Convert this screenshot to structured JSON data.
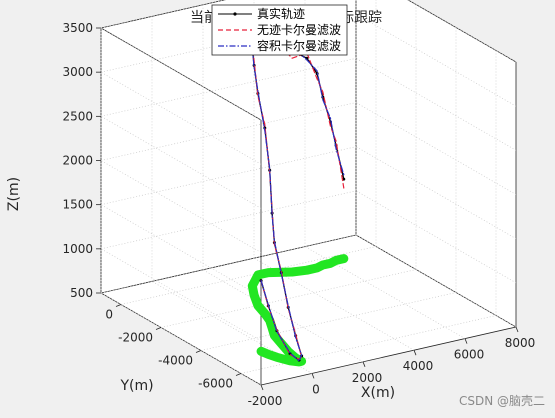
{
  "window": {
    "watermark": "CSDN @脑壳二"
  },
  "chart_data": {
    "type": "line3d",
    "title": "当前（被遮挡）……标跟踪",
    "title_left": "当前",
    "title_right": "标跟踪",
    "xlabel": "X(m)",
    "ylabel": "Y(m)",
    "zlabel": "Z(m)",
    "xlim": [
      -2000,
      8000
    ],
    "ylim": [
      -7000,
      1000
    ],
    "zlim": [
      500,
      3500
    ],
    "x_ticks": [
      "-2000",
      "0",
      "2000",
      "4000",
      "6000",
      "8000"
    ],
    "y_ticks": [
      "0",
      "-2000",
      "-4000",
      "-6000"
    ],
    "z_ticks": [
      "500",
      "1000",
      "1500",
      "2000",
      "2500",
      "3000",
      "3500"
    ],
    "grid": true,
    "legend_position": "top-center",
    "series": [
      {
        "name": "真实轨迹",
        "color": "#000000",
        "style": "solid-dot",
        "x": [
          -350,
          -300,
          -200,
          0,
          200,
          300,
          300,
          400,
          600,
          800,
          1100,
          1400,
          1600,
          1800,
          2200,
          2600,
          3300,
          3700,
          4400,
          4900,
          5300,
          5600,
          5900,
          6200,
          6500
        ],
        "y": [
          -4900,
          -5200,
          -5500,
          -5900,
          -6100,
          -6100,
          -5800,
          -5300,
          -4700,
          -4100,
          -3600,
          -3100,
          -2600,
          -2000,
          -1300,
          -700,
          -100,
          -100,
          -400,
          -500,
          -500,
          -400,
          -400,
          -300,
          -300
        ],
        "z": [
          1300,
          1050,
          800,
          580,
          520,
          560,
          750,
          1000,
          1300,
          1550,
          1800,
          2200,
          2600,
          2900,
          3100,
          3200,
          3200,
          3100,
          3000,
          2900,
          2700,
          2400,
          2100,
          1800,
          1400
        ]
      },
      {
        "name": "无迹卡尔曼滤波",
        "color": "#e8203a",
        "style": "dashed",
        "x": [
          -350,
          -300,
          -200,
          0,
          200,
          300,
          300,
          400,
          600,
          800,
          1100,
          1400,
          1600,
          1800,
          2200,
          2600,
          3300,
          3700,
          4400,
          4900,
          5300,
          5600,
          5900,
          6200,
          6500
        ],
        "y": [
          -4900,
          -5200,
          -5500,
          -5900,
          -6100,
          -6100,
          -5800,
          -5300,
          -4700,
          -4100,
          -3600,
          -3100,
          -2600,
          -2000,
          -1300,
          -700,
          -100,
          -100,
          -400,
          -500,
          -500,
          -400,
          -400,
          -300,
          -300
        ],
        "z": [
          1300,
          1040,
          810,
          570,
          530,
          550,
          770,
          990,
          1320,
          1530,
          1830,
          2180,
          2640,
          2870,
          3150,
          3230,
          3120,
          3200,
          2920,
          2960,
          2640,
          2460,
          2050,
          1850,
          1300
        ]
      },
      {
        "name": "容积卡尔曼滤波",
        "color": "#2b2fc2",
        "style": "dashdot",
        "x": [
          -350,
          -300,
          -200,
          0,
          200,
          300,
          300,
          400,
          600,
          800,
          1100,
          1400,
          1600,
          1800,
          2200,
          2600,
          3300,
          3700,
          4400,
          4900,
          5300,
          5600,
          5900,
          6200,
          6500
        ],
        "y": [
          -4900,
          -5200,
          -5500,
          -5900,
          -6100,
          -6100,
          -5800,
          -5300,
          -4700,
          -4100,
          -3600,
          -3100,
          -2600,
          -2000,
          -1300,
          -700,
          -100,
          -100,
          -400,
          -500,
          -500,
          -400,
          -400,
          -300,
          -300
        ],
        "z": [
          1300,
          1060,
          790,
          590,
          510,
          570,
          730,
          1020,
          1290,
          1570,
          1780,
          2220,
          2570,
          2930,
          3080,
          3180,
          3240,
          3070,
          3050,
          2880,
          2730,
          2370,
          2140,
          1760,
          1450
        ]
      },
      {
        "name": "",
        "color": "#22e622",
        "style": "projection",
        "x": [
          -350,
          -300,
          -200,
          0,
          200,
          300,
          300,
          400,
          600,
          800,
          1100,
          1400,
          1600,
          1800,
          2200,
          2600,
          3300,
          3700,
          4400,
          4900,
          5300,
          5600,
          5900,
          6200,
          6500
        ],
        "y": [
          -4900,
          -5200,
          -5500,
          -5900,
          -6100,
          -6100,
          -5800,
          -5300,
          -4700,
          -4100,
          -3600,
          -3100,
          -2600,
          -2000,
          -1300,
          -700,
          -100,
          -100,
          -400,
          -500,
          -500,
          -400,
          -400,
          -300,
          -300
        ],
        "z": 500
      }
    ]
  }
}
